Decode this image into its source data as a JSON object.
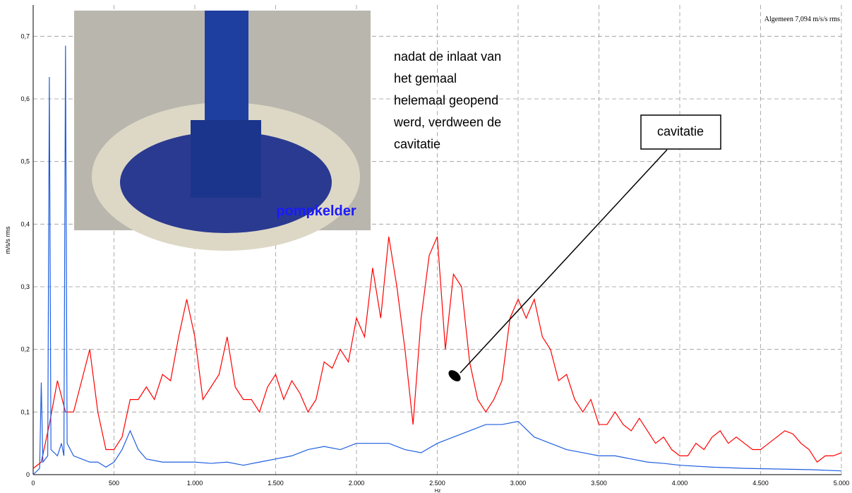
{
  "chart_data": {
    "type": "line",
    "header_note": "Algemeen 7,094 m/s/s rms",
    "ylabel": "m/s/s rms",
    "xlabel": "Hz",
    "annotations": {
      "note": [
        "nadat de inlaat van",
        "het gemaal",
        "helemaal geopend",
        "werd, verdween de",
        "cavitatie"
      ],
      "callout": "cavitatie",
      "photo_caption": "pompkelder"
    },
    "xlim": [
      0,
      5000
    ],
    "ylim": [
      0,
      0.75
    ],
    "grid": true,
    "xticks": [
      0,
      500,
      {
        "value": 1000,
        "label": "1.000"
      },
      {
        "value": 1500,
        "label": "1.500"
      },
      {
        "value": 2000,
        "label": "2.000"
      },
      {
        "value": 2500,
        "label": "2.500"
      },
      {
        "value": 3000,
        "label": "3.000"
      },
      {
        "value": 3500,
        "label": "3.500"
      },
      {
        "value": 4000,
        "label": "4.000"
      },
      {
        "value": 4500,
        "label": "4.500"
      },
      {
        "value": 5000,
        "label": "5.000"
      }
    ],
    "yticks": [
      0,
      {
        "value": 0.1,
        "label": "0,1"
      },
      {
        "value": 0.2,
        "label": "0,2"
      },
      {
        "value": 0.3,
        "label": "0,3"
      },
      {
        "value": 0.4,
        "label": "0,4"
      },
      {
        "value": 0.5,
        "label": "0,5"
      },
      {
        "value": 0.6,
        "label": "0,6"
      },
      {
        "value": 0.7,
        "label": "0,7"
      }
    ],
    "series": [
      {
        "color": "#ff0000",
        "x": [
          0,
          50,
          100,
          150,
          200,
          250,
          300,
          350,
          400,
          450,
          500,
          550,
          600,
          650,
          700,
          750,
          800,
          850,
          900,
          950,
          1000,
          1050,
          1100,
          1150,
          1200,
          1250,
          1300,
          1350,
          1400,
          1450,
          1500,
          1550,
          1600,
          1650,
          1700,
          1750,
          1800,
          1850,
          1900,
          1950,
          2000,
          2050,
          2100,
          2150,
          2200,
          2250,
          2300,
          2350,
          2400,
          2450,
          2500,
          2550,
          2600,
          2650,
          2700,
          2750,
          2800,
          2850,
          2900,
          2950,
          3000,
          3050,
          3100,
          3150,
          3200,
          3250,
          3300,
          3350,
          3400,
          3450,
          3500,
          3550,
          3600,
          3650,
          3700,
          3750,
          3800,
          3850,
          3900,
          3950,
          4000,
          4050,
          4100,
          4150,
          4200,
          4250,
          4300,
          4350,
          4400,
          4450,
          4500,
          4550,
          4600,
          4650,
          4700,
          4750,
          4800,
          4850,
          4900,
          4950,
          5000
        ],
        "values": [
          0.01,
          0.02,
          0.08,
          0.15,
          0.1,
          0.1,
          0.15,
          0.2,
          0.1,
          0.04,
          0.04,
          0.06,
          0.12,
          0.12,
          0.14,
          0.12,
          0.16,
          0.15,
          0.22,
          0.28,
          0.22,
          0.12,
          0.14,
          0.16,
          0.22,
          0.14,
          0.12,
          0.12,
          0.1,
          0.14,
          0.16,
          0.12,
          0.15,
          0.13,
          0.1,
          0.12,
          0.18,
          0.17,
          0.2,
          0.18,
          0.25,
          0.22,
          0.33,
          0.25,
          0.38,
          0.3,
          0.2,
          0.08,
          0.25,
          0.35,
          0.38,
          0.2,
          0.32,
          0.3,
          0.18,
          0.12,
          0.1,
          0.12,
          0.15,
          0.25,
          0.28,
          0.25,
          0.28,
          0.22,
          0.2,
          0.15,
          0.16,
          0.12,
          0.1,
          0.12,
          0.08,
          0.08,
          0.1,
          0.08,
          0.07,
          0.09,
          0.07,
          0.05,
          0.06,
          0.04,
          0.03,
          0.03,
          0.05,
          0.04,
          0.06,
          0.07,
          0.05,
          0.06,
          0.05,
          0.04,
          0.04,
          0.05,
          0.06,
          0.07,
          0.065,
          0.05,
          0.04,
          0.02,
          0.03,
          0.03,
          0.035
        ]
      },
      {
        "color": "#1f5fe0",
        "x": [
          0,
          40,
          50,
          60,
          90,
          100,
          110,
          150,
          175,
          190,
          200,
          210,
          250,
          300,
          350,
          400,
          450,
          500,
          550,
          600,
          650,
          700,
          800,
          900,
          1000,
          1100,
          1200,
          1300,
          1400,
          1500,
          1600,
          1700,
          1800,
          1900,
          2000,
          2100,
          2200,
          2300,
          2400,
          2500,
          2600,
          2700,
          2800,
          2900,
          3000,
          3100,
          3200,
          3300,
          3400,
          3500,
          3600,
          3700,
          3800,
          3900,
          4000,
          4200,
          4400,
          4600,
          4800,
          5000
        ],
        "values": [
          0,
          0.01,
          0.147,
          0.02,
          0.03,
          0.635,
          0.04,
          0.03,
          0.05,
          0.03,
          0.685,
          0.05,
          0.03,
          0.025,
          0.02,
          0.02,
          0.012,
          0.02,
          0.04,
          0.07,
          0.04,
          0.025,
          0.02,
          0.02,
          0.02,
          0.018,
          0.02,
          0.015,
          0.02,
          0.025,
          0.03,
          0.04,
          0.045,
          0.04,
          0.05,
          0.05,
          0.05,
          0.04,
          0.035,
          0.05,
          0.06,
          0.07,
          0.08,
          0.08,
          0.085,
          0.06,
          0.05,
          0.04,
          0.035,
          0.03,
          0.03,
          0.025,
          0.02,
          0.018,
          0.015,
          0.012,
          0.01,
          0.009,
          0.008,
          0.006
        ]
      }
    ]
  }
}
